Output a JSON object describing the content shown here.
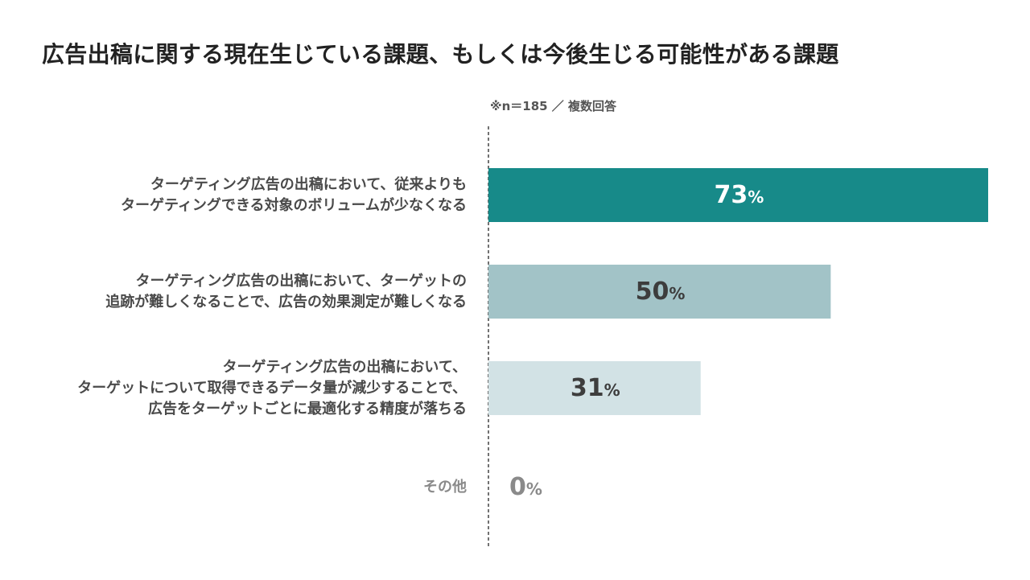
{
  "title": "広告出稿に関する現在生じている課題、もしくは今後生じる可能性がある課題",
  "note": "※n＝185 ／ 複数回答",
  "colors": {
    "bar_1": "#178a89",
    "bar_2": "#a2c3c7",
    "bar_3": "#d2e2e5",
    "bar_4": "#d2e2e5",
    "value_text_1": "#ffffff",
    "value_text_2": "#3d3d3d",
    "value_text_3": "#3d3d3d",
    "value_text_4": "#8a8a8a",
    "axis": "#444444"
  },
  "chart_data": {
    "type": "bar",
    "orientation": "horizontal",
    "unit": "%",
    "xlim": [
      0,
      73
    ],
    "categories": [
      [
        "ターゲティング広告の出稿において、従来よりも",
        "ターゲティングできる対象のボリュームが少なくなる"
      ],
      [
        "ターゲティング広告の出稿において、ターゲットの",
        "追跡が難しくなることで、広告の効果測定が難しくなる"
      ],
      [
        "ターゲティング広告の出稿において、",
        "ターゲットについて取得できるデータ量が減少することで、",
        "広告をターゲットごとに最適化する精度が落ちる"
      ],
      [
        "その他"
      ]
    ],
    "values": [
      73,
      50,
      31,
      0
    ],
    "value_labels": [
      "73",
      "50",
      "31",
      "0"
    ],
    "percent_sign": "%"
  }
}
